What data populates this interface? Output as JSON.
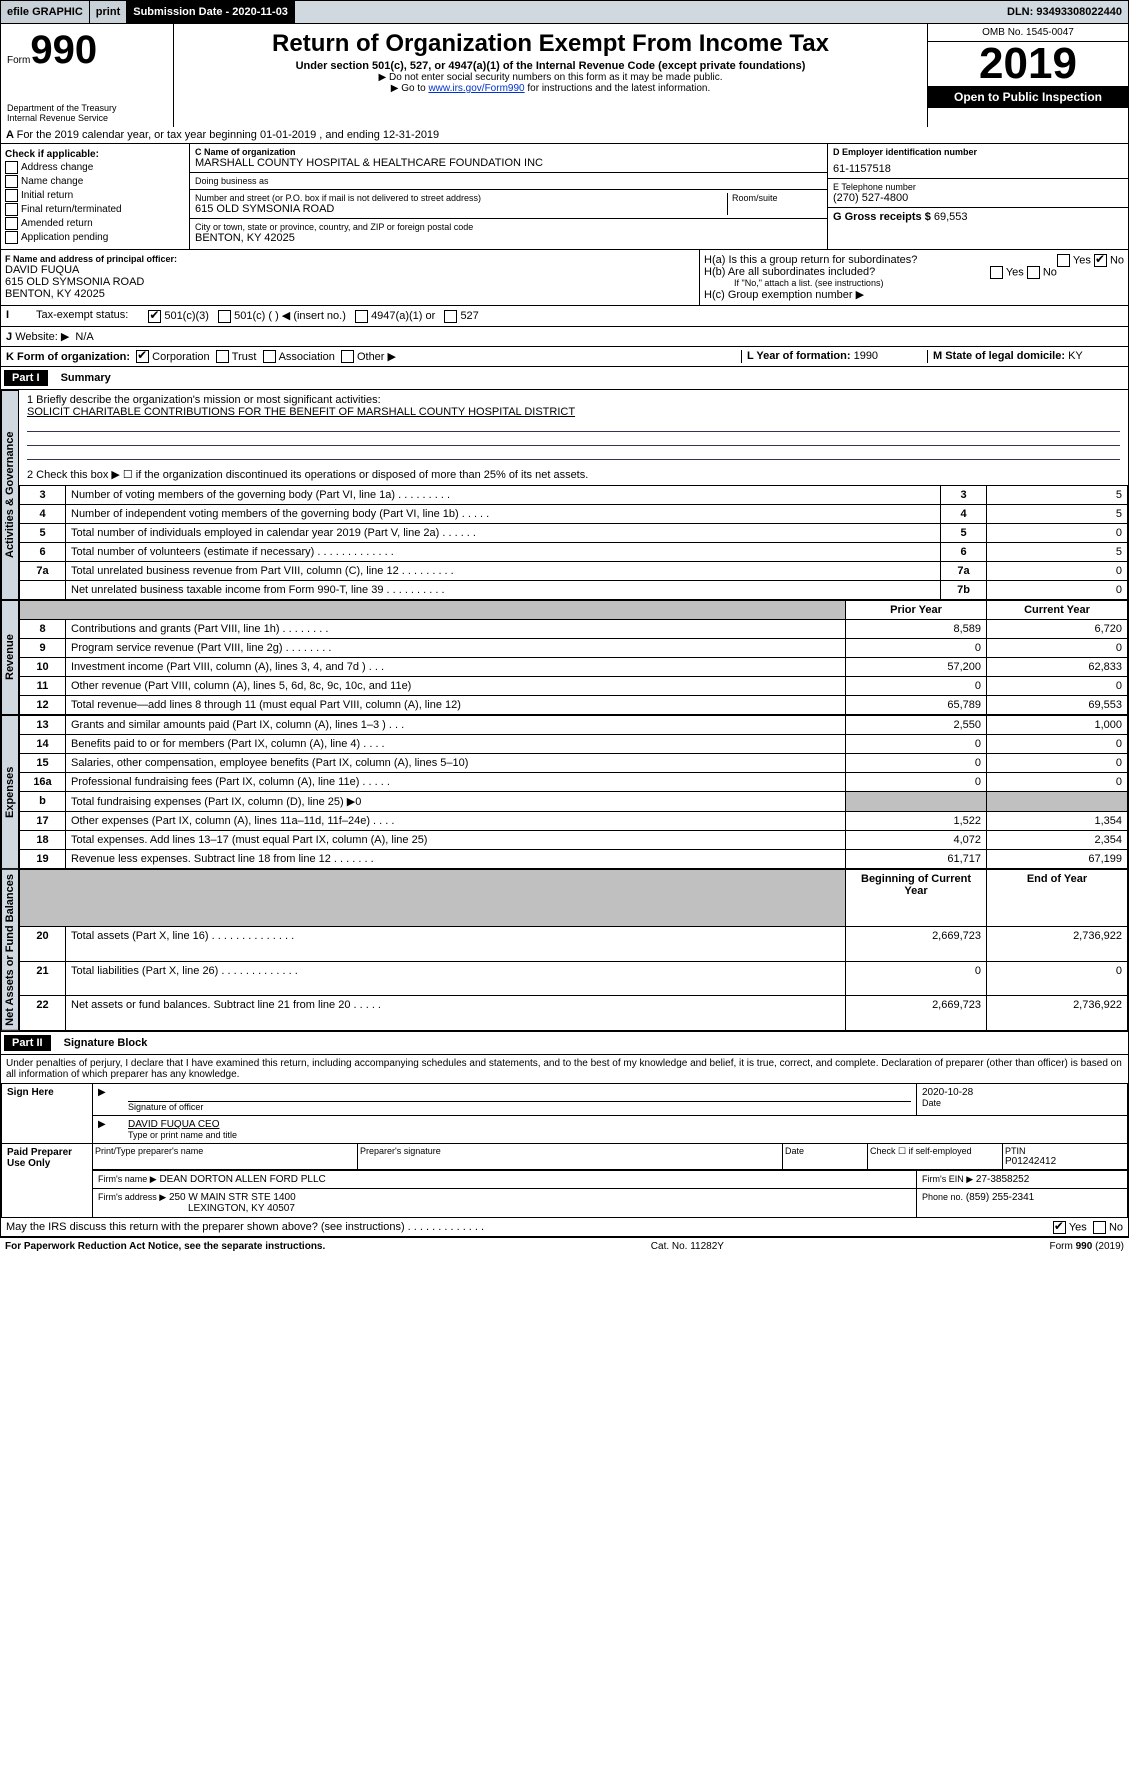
{
  "topbar": {
    "efile": "efile GRAPHIC",
    "print": "print",
    "sub_label": "Submission Date - 2020-11-03",
    "dln": "DLN: 93493308022440"
  },
  "header": {
    "form_small": "Form",
    "form_num": "990",
    "dept1": "Department of the Treasury",
    "dept2": "Internal Revenue Service",
    "title": "Return of Organization Exempt From Income Tax",
    "sub": "Under section 501(c), 527, or 4947(a)(1) of the Internal Revenue Code (except private foundations)",
    "note1": "▶ Do not enter social security numbers on this form as it may be made public.",
    "note2_pre": "▶ Go to ",
    "note2_link": "www.irs.gov/Form990",
    "note2_post": " for instructions and the latest information.",
    "omb": "OMB No. 1545-0047",
    "year": "2019",
    "open": "Open to Public Inspection"
  },
  "A": {
    "text": "For the 2019 calendar year, or tax year beginning 01-01-2019   , and ending 12-31-2019"
  },
  "B": {
    "label": "Check if applicable:",
    "opts": [
      "Address change",
      "Name change",
      "Initial return",
      "Final return/terminated",
      "Amended return",
      "Application pending"
    ]
  },
  "C": {
    "name_label": "C Name of organization",
    "name": "MARSHALL COUNTY HOSPITAL & HEALTHCARE FOUNDATION INC",
    "dba_label": "Doing business as",
    "dba": "",
    "addr_label": "Number and street (or P.O. box if mail is not delivered to street address)",
    "room_label": "Room/suite",
    "addr": "615 OLD SYMSONIA ROAD",
    "city_label": "City or town, state or province, country, and ZIP or foreign postal code",
    "city": "BENTON, KY  42025"
  },
  "D": {
    "label": "D Employer identification number",
    "value": "61-1157518"
  },
  "E": {
    "label": "E Telephone number",
    "value": "(270) 527-4800"
  },
  "G": {
    "label": "G Gross receipts $",
    "value": "69,553"
  },
  "F": {
    "label": "F  Name and address of principal officer:",
    "name": "DAVID FUQUA",
    "addr1": "615 OLD SYMSONIA ROAD",
    "addr2": "BENTON, KY  42025"
  },
  "H": {
    "a": "H(a)  Is this a group return for subordinates?",
    "b": "H(b)  Are all subordinates included?",
    "b_note": "If \"No,\" attach a list. (see instructions)",
    "c": "H(c)  Group exemption number ▶",
    "yes": "Yes",
    "no": "No"
  },
  "I": {
    "label": "Tax-exempt status:",
    "o1": "501(c)(3)",
    "o2": "501(c) (   ) ◀ (insert no.)",
    "o3": "4947(a)(1) or",
    "o4": "527"
  },
  "J": {
    "label": "Website: ▶",
    "value": "N/A"
  },
  "K": {
    "label": "K Form of organization:",
    "corp": "Corporation",
    "trust": "Trust",
    "assoc": "Association",
    "other": "Other ▶"
  },
  "L": {
    "label": "L Year of formation:",
    "value": "1990"
  },
  "M": {
    "label": "M State of legal domicile:",
    "value": "KY"
  },
  "part1": {
    "header": "Part I",
    "title": "Summary",
    "l1_label": "1  Briefly describe the organization's mission or most significant activities:",
    "l1_value": "SOLICIT CHARITABLE CONTRIBUTIONS FOR THE BENEFIT OF MARSHALL COUNTY HOSPITAL DISTRICT",
    "l2": "2  Check this box ▶ ☐  if the organization discontinued its operations or disposed of more than 25% of its net assets.",
    "rows_gov": [
      {
        "n": "3",
        "d": "Number of voting members of the governing body (Part VI, line 1a)  .    .    .    .    .    .    .    .    .",
        "box": "3",
        "v": "5"
      },
      {
        "n": "4",
        "d": "Number of independent voting members of the governing body (Part VI, line 1b)  .    .    .    .    .",
        "box": "4",
        "v": "5"
      },
      {
        "n": "5",
        "d": "Total number of individuals employed in calendar year 2019 (Part V, line 2a)  .    .    .    .    .    .",
        "box": "5",
        "v": "0"
      },
      {
        "n": "6",
        "d": "Total number of volunteers (estimate if necessary)  .    .    .    .    .    .    .    .    .    .    .    .    .",
        "box": "6",
        "v": "5"
      },
      {
        "n": "7a",
        "d": "Total unrelated business revenue from Part VIII, column (C), line 12  .    .    .    .    .    .    .    .    .",
        "box": "7a",
        "v": "0"
      },
      {
        "n": "",
        "d": "Net unrelated business taxable income from Form 990-T, line 39  .    .    .    .    .    .    .    .    .    .",
        "box": "7b",
        "v": "0"
      }
    ],
    "col_hdr_prior": "Prior Year",
    "col_hdr_curr": "Current Year",
    "rows_rev": [
      {
        "n": "8",
        "d": "Contributions and grants (Part VIII, line 1h)  .    .    .    .    .    .    .    .",
        "p": "8,589",
        "c": "6,720"
      },
      {
        "n": "9",
        "d": "Program service revenue (Part VIII, line 2g)  .    .    .    .    .    .    .    .",
        "p": "0",
        "c": "0"
      },
      {
        "n": "10",
        "d": "Investment income (Part VIII, column (A), lines 3, 4, and 7d )  .    .    .",
        "p": "57,200",
        "c": "62,833"
      },
      {
        "n": "11",
        "d": "Other revenue (Part VIII, column (A), lines 5, 6d, 8c, 9c, 10c, and 11e)",
        "p": "0",
        "c": "0"
      },
      {
        "n": "12",
        "d": "Total revenue—add lines 8 through 11 (must equal Part VIII, column (A), line 12)",
        "p": "65,789",
        "c": "69,553"
      }
    ],
    "rows_exp": [
      {
        "n": "13",
        "d": "Grants and similar amounts paid (Part IX, column (A), lines 1–3 )  .    .    .",
        "p": "2,550",
        "c": "1,000"
      },
      {
        "n": "14",
        "d": "Benefits paid to or for members (Part IX, column (A), line 4)  .    .    .    .",
        "p": "0",
        "c": "0"
      },
      {
        "n": "15",
        "d": "Salaries, other compensation, employee benefits (Part IX, column (A), lines 5–10)",
        "p": "0",
        "c": "0"
      },
      {
        "n": "16a",
        "d": "Professional fundraising fees (Part IX, column (A), line 11e)  .    .    .    .    .",
        "p": "0",
        "c": "0"
      },
      {
        "n": "b",
        "d": "Total fundraising expenses (Part IX, column (D), line 25) ▶0",
        "p": "",
        "c": "",
        "shade": true
      },
      {
        "n": "17",
        "d": "Other expenses (Part IX, column (A), lines 11a–11d, 11f–24e)  .    .    .    .",
        "p": "1,522",
        "c": "1,354"
      },
      {
        "n": "18",
        "d": "Total expenses. Add lines 13–17 (must equal Part IX, column (A), line 25)",
        "p": "4,072",
        "c": "2,354"
      },
      {
        "n": "19",
        "d": "Revenue less expenses. Subtract line 18 from line 12  .    .    .    .    .    .    .",
        "p": "61,717",
        "c": "67,199"
      }
    ],
    "col_hdr_beg": "Beginning of Current Year",
    "col_hdr_end": "End of Year",
    "rows_net": [
      {
        "n": "20",
        "d": "Total assets (Part X, line 16)  .    .    .    .    .    .    .    .    .    .    .    .    .    .",
        "p": "2,669,723",
        "c": "2,736,922"
      },
      {
        "n": "21",
        "d": "Total liabilities (Part X, line 26)  .    .    .    .    .    .    .    .    .    .    .    .    .",
        "p": "0",
        "c": "0"
      },
      {
        "n": "22",
        "d": "Net assets or fund balances. Subtract line 21 from line 20  .    .    .    .    .",
        "p": "2,669,723",
        "c": "2,736,922"
      }
    ]
  },
  "part2": {
    "header": "Part II",
    "title": "Signature Block",
    "perjury": "Under penalties of perjury, I declare that I have examined this return, including accompanying schedules and statements, and to the best of my knowledge and belief, it is true, correct, and complete. Declaration of preparer (other than officer) is based on all information of which preparer has any knowledge.",
    "sign_here": "Sign Here",
    "sig_officer": "Signature of officer",
    "sig_date": "2020-10-28",
    "date_label": "Date",
    "officer_name": "DAVID FUQUA CEO",
    "type_name": "Type or print name and title",
    "paid": "Paid Preparer Use Only",
    "prep_name_label": "Print/Type preparer's name",
    "prep_sig_label": "Preparer's signature",
    "ptin_label": "PTIN",
    "ptin": "P01242412",
    "check_self": "Check ☐ if self-employed",
    "firm_name_label": "Firm's name     ▶",
    "firm_name": "DEAN DORTON ALLEN FORD PLLC",
    "firm_ein_label": "Firm's EIN ▶",
    "firm_ein": "27-3858252",
    "firm_addr_label": "Firm's address ▶",
    "firm_addr1": "250 W MAIN STR STE 1400",
    "firm_addr2": "LEXINGTON, KY  40507",
    "phone_label": "Phone no.",
    "phone": "(859) 255-2341",
    "discuss": "May the IRS discuss this return with the preparer shown above? (see instructions)  .    .    .    .    .    .    .    .    .    .    .    .    .",
    "yes": "Yes",
    "no": "No"
  },
  "footer": {
    "left": "For Paperwork Reduction Act Notice, see the separate instructions.",
    "mid": "Cat. No. 11282Y",
    "right": "Form 990 (2019)"
  },
  "vert": {
    "gov": "Activities & Governance",
    "rev": "Revenue",
    "exp": "Expenses",
    "net": "Net Assets or Fund Balances"
  }
}
